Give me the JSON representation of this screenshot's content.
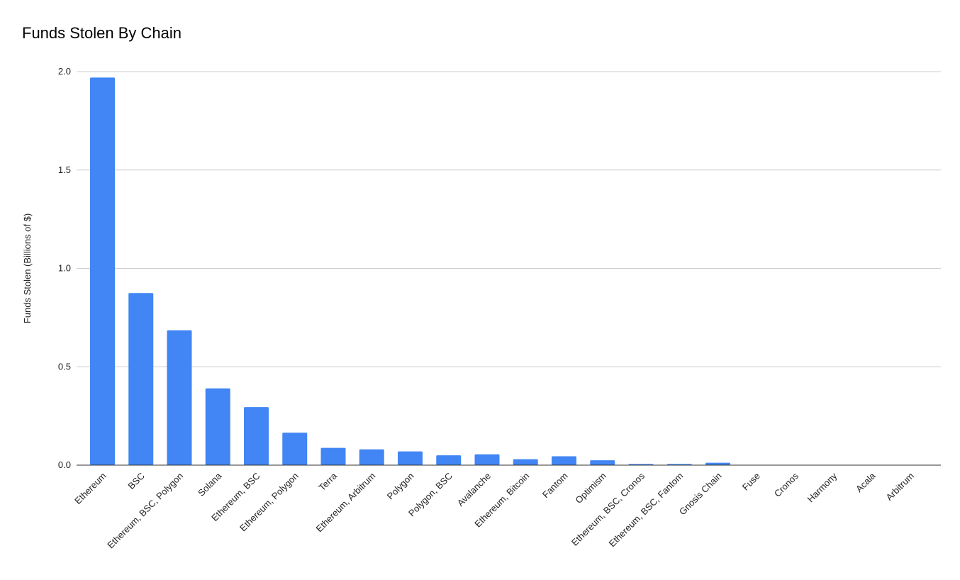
{
  "chart_data": {
    "type": "bar",
    "title": "Funds Stolen By Chain",
    "xlabel": "",
    "ylabel": "Funds Stolen (Billions of $)",
    "ylim": [
      0,
      2.0
    ],
    "yticks": [
      "0.0",
      "0.5",
      "1.0",
      "1.5",
      "2.0"
    ],
    "grid": true,
    "legend": "none",
    "bar_color": "#4285F4",
    "categories": [
      "Ethereum",
      "BSC",
      "Ethereum, BSC, Polygon",
      "Solana",
      "Ethereum, BSC",
      "Ethereum, Polygon",
      "Terra",
      "Ethereum, Arbitrum",
      "Polygon",
      "Polygon, BSC",
      "Avalanche",
      "Ethereum, Bitcoin",
      "Fantom",
      "Optimism",
      "Ethereum, BSC, Cronos",
      "Ethereum, BSC, Fantom",
      "Gnosis Chain",
      "Fuse",
      "Cronos",
      "Harmony",
      "Acala",
      "Arbitrum"
    ],
    "values": [
      1.97,
      0.875,
      0.685,
      0.39,
      0.295,
      0.165,
      0.088,
      0.08,
      0.07,
      0.05,
      0.055,
      0.03,
      0.045,
      0.025,
      0.006,
      0.006,
      0.012,
      0.002,
      0.002,
      0.0005,
      0.0003,
      0.0002
    ]
  }
}
